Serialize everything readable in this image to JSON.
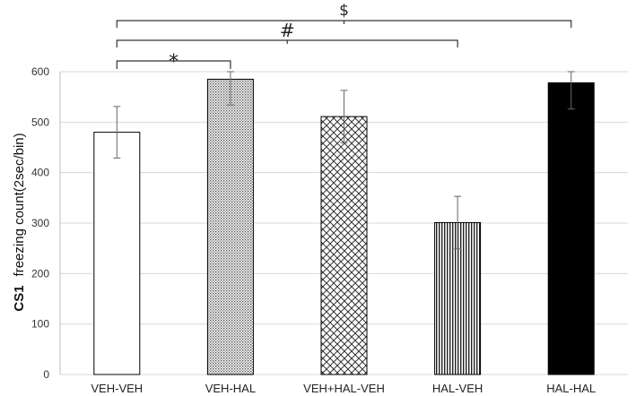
{
  "chart_data": {
    "type": "bar",
    "categories": [
      "VEH-VEH",
      "VEH-HAL",
      "VEH+HAL-VEH",
      "HAL-VEH",
      "HAL-HAL"
    ],
    "values": [
      480,
      585,
      511,
      301,
      578
    ],
    "errors": [
      51,
      51,
      52,
      52,
      52
    ],
    "ylim": [
      0,
      600
    ],
    "yticks": [
      0,
      100,
      200,
      300,
      400,
      500,
      600
    ],
    "ytick_labels": [
      "0",
      "100",
      "200",
      "300",
      "400",
      "500",
      "600"
    ],
    "ylabel_prefix": "CS1",
    "ylabel_main": "freezing count(2sec/bin)",
    "xlabel": "",
    "title": "",
    "fills": [
      "white",
      "dots",
      "crosshatch",
      "vertical-lines",
      "black"
    ],
    "significance": [
      {
        "from": 0,
        "to": 1,
        "label": "*",
        "level": 0
      },
      {
        "from": 0,
        "to": 3,
        "label": "#",
        "level": 1
      },
      {
        "from": 0,
        "to": 4,
        "label": "$",
        "level": 2
      }
    ]
  }
}
